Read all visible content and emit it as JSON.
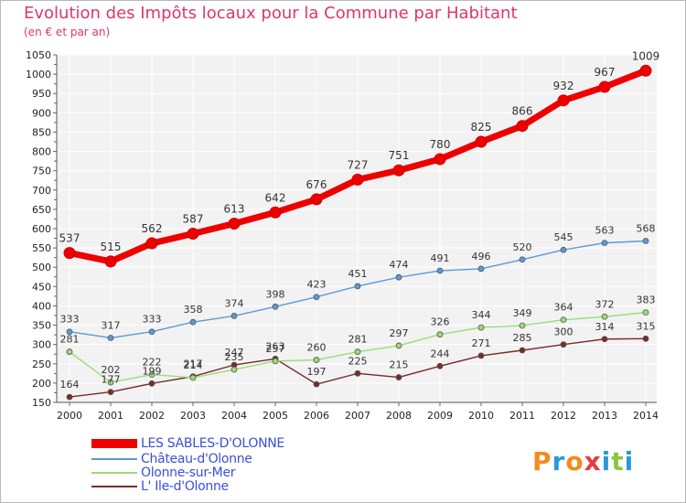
{
  "title": "Evolution des Impôts locaux pour la Commune par Habitant",
  "subtitle": "(en € et par an)",
  "logo": {
    "letters": [
      "P",
      "r",
      "o",
      "x",
      "i",
      "t",
      "i"
    ],
    "colors": [
      "#f28c1e",
      "#2a9ad6",
      "#f28c1e",
      "#e83a3a",
      "#2a9ad6",
      "#8cc63f",
      "#2a9ad6"
    ]
  },
  "chart_data": {
    "type": "line",
    "title": "Evolution des Impôts locaux pour la Commune par Habitant",
    "subtitle": "(en € et par an)",
    "xlabel": "",
    "ylabel": "",
    "x": [
      "2000",
      "2001",
      "2002",
      "2003",
      "2004",
      "2005",
      "2006",
      "2007",
      "2008",
      "2009",
      "2010",
      "2011",
      "2012",
      "2013",
      "2014"
    ],
    "ylim": [
      150,
      1050
    ],
    "yticks": [
      "150",
      "200",
      "250",
      "300",
      "350",
      "400",
      "450",
      "500",
      "550",
      "600",
      "650",
      "700",
      "750",
      "800",
      "850",
      "900",
      "950",
      "1000",
      "1050"
    ],
    "legend_position": "bottom-left",
    "series": [
      {
        "name": "LES SABLES-D'OLONNE",
        "color": "#ee0000",
        "values": [
          537,
          515,
          562,
          587,
          613,
          642,
          676,
          727,
          751,
          780,
          825,
          866,
          932,
          967,
          1009
        ]
      },
      {
        "name": "Château-d'Olonne",
        "color": "#5b9bd5",
        "values": [
          333,
          317,
          333,
          358,
          374,
          398,
          423,
          451,
          474,
          491,
          496,
          520,
          545,
          563,
          568
        ]
      },
      {
        "name": "Olonne-sur-Mer",
        "color": "#99dd77",
        "values": [
          281,
          202,
          222,
          214,
          235,
          257,
          260,
          281,
          297,
          326,
          344,
          349,
          364,
          372,
          383
        ]
      },
      {
        "name": "L' Ile-d'Olonne",
        "color": "#7a2a2a",
        "values": [
          164,
          177,
          199,
          217,
          247,
          263,
          197,
          225,
          215,
          244,
          271,
          285,
          300,
          314,
          315
        ]
      }
    ]
  }
}
